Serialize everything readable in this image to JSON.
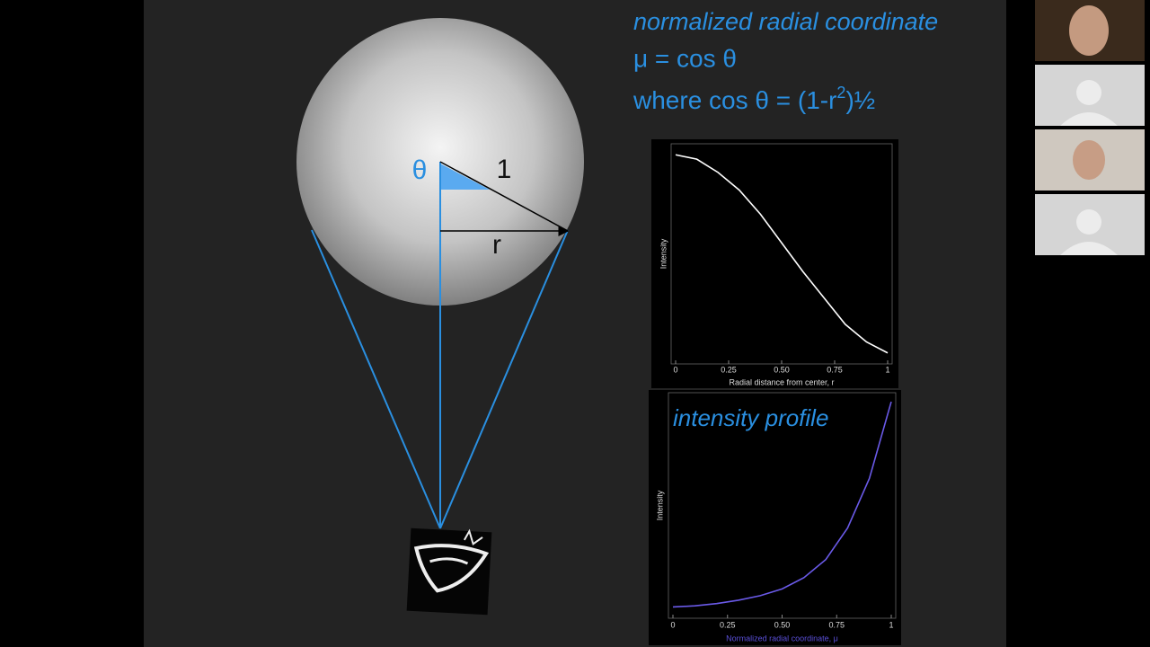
{
  "slide": {
    "heading": "normalized radial coordinate",
    "equation_1": "μ = cos θ",
    "equation_2": {
      "text": "where cos θ = (1-r",
      "superscript": "2",
      "suffix": ")½"
    },
    "diagram": {
      "angle_label": "θ",
      "hypotenuse_label": "1",
      "radius_label": "r"
    }
  },
  "chart_data": [
    {
      "type": "line",
      "y_label": "Intensity",
      "x_label": "Radial distance from center, r",
      "x": [
        0,
        0.1,
        0.2,
        0.3,
        0.4,
        0.5,
        0.6,
        0.7,
        0.8,
        0.9,
        1
      ],
      "series": [
        {
          "name": "Intensity",
          "color": "#ffffff",
          "values": [
            0.95,
            0.93,
            0.87,
            0.79,
            0.68,
            0.55,
            0.42,
            0.3,
            0.18,
            0.1,
            0.05
          ]
        }
      ],
      "xlim": [
        0,
        1
      ],
      "xticks": [
        0,
        {
          "value": 0.25,
          "label": "0.25"
        },
        {
          "value": 0.5,
          "label": "0.50"
        },
        {
          "value": 0.75,
          "label": "0.75"
        },
        1
      ],
      "ylim": [
        0,
        1
      ]
    },
    {
      "type": "line",
      "title": "intensity profile",
      "y_label": "Intensity",
      "x_label": "Normalized radial coordinate, μ",
      "x": [
        0,
        0.1,
        0.2,
        0.3,
        0.4,
        0.5,
        0.6,
        0.7,
        0.8,
        0.9,
        1
      ],
      "series": [
        {
          "name": "Intensity",
          "color": "#6a5ae8",
          "values": [
            0.05,
            0.055,
            0.065,
            0.08,
            0.1,
            0.13,
            0.18,
            0.26,
            0.4,
            0.62,
            0.96
          ]
        }
      ],
      "xlim": [
        0,
        1
      ],
      "xticks": [
        0,
        {
          "value": 0.25,
          "label": "0.25"
        },
        {
          "value": 0.5,
          "label": "0.50"
        },
        {
          "value": 0.75,
          "label": "0.75"
        },
        1
      ],
      "ylim": [
        0,
        1
      ]
    }
  ]
}
